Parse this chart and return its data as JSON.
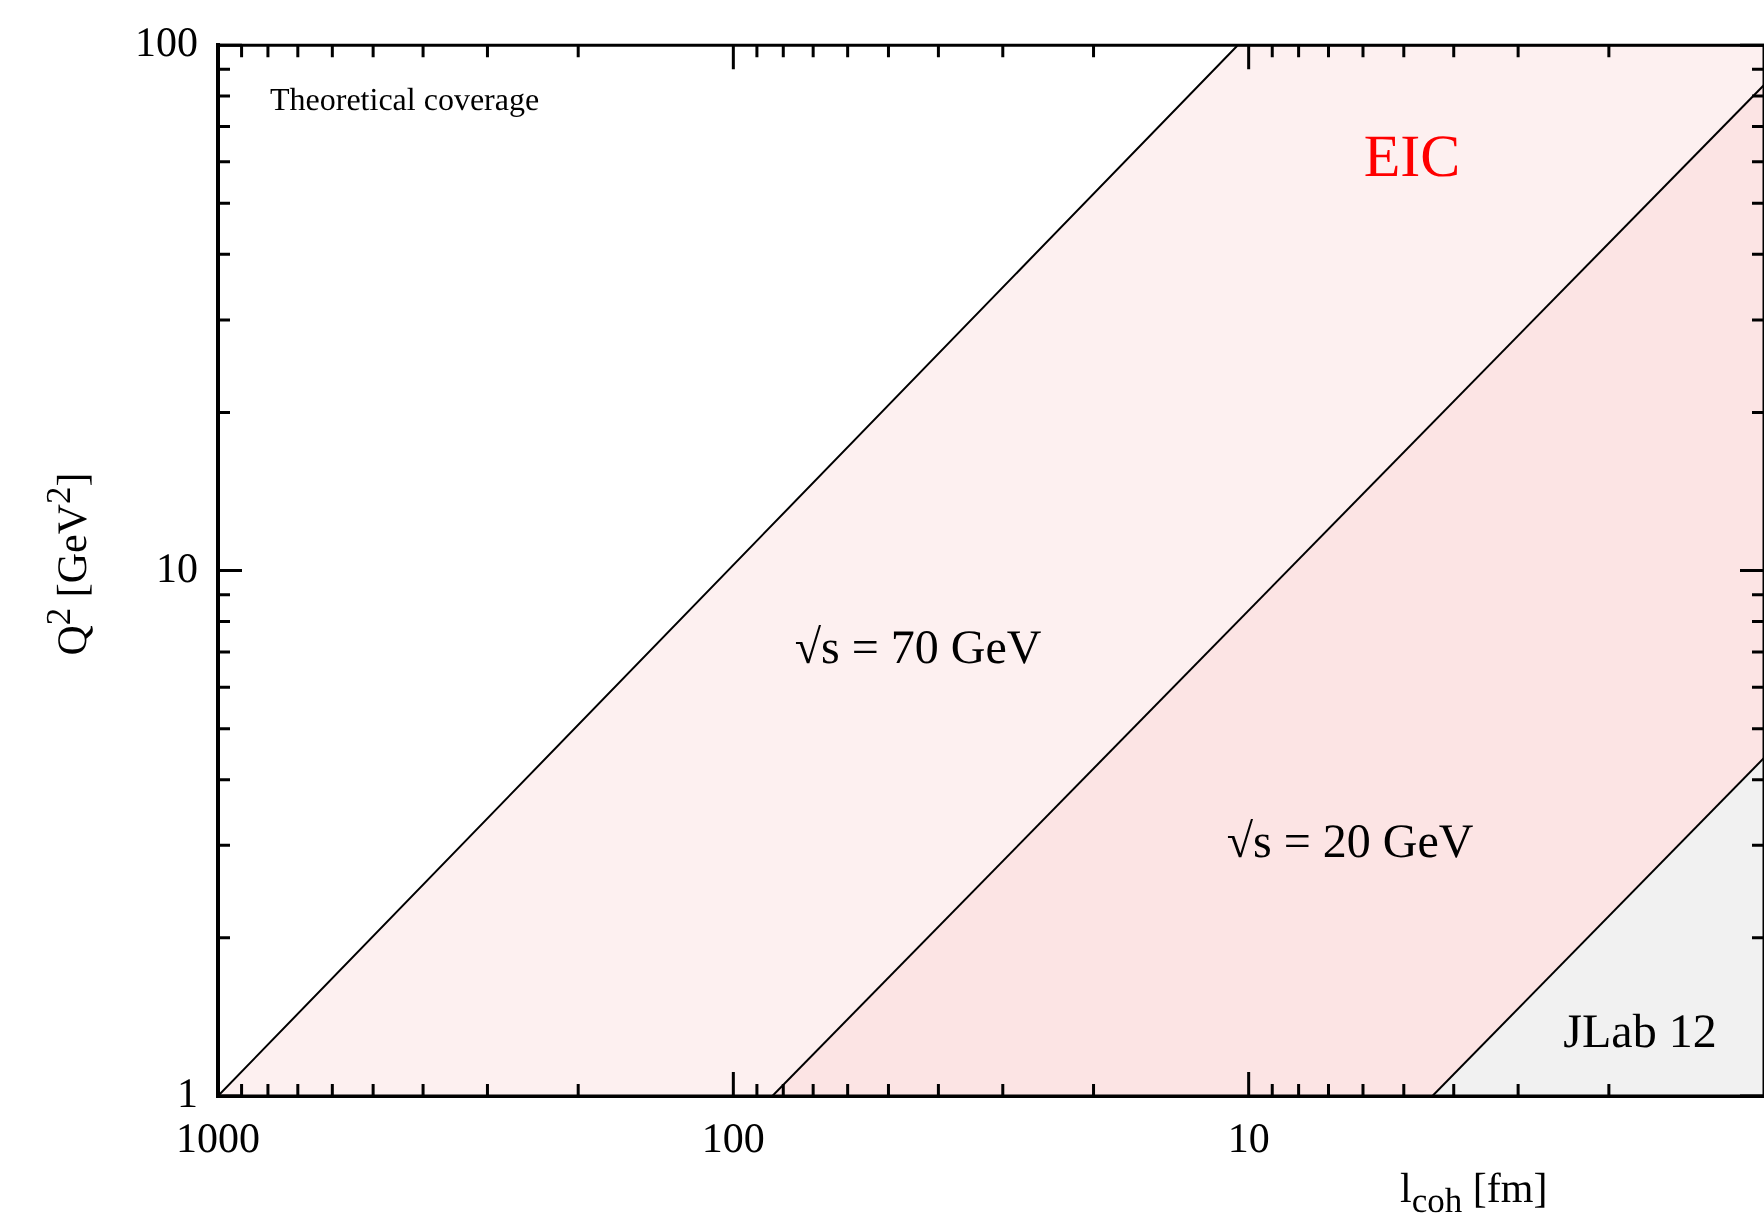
{
  "chart_data": {
    "type": "area",
    "xlabel": "l$_{coh}$   [fm]",
    "ylabel": "Q$^{2}$  [GeV$^{2}$]",
    "log": "xy",
    "xlim": [
      1000,
      1
    ],
    "ylim": [
      1,
      100
    ],
    "xticks": [
      1000,
      {
        "value": 900,
        "label": null
      },
      {
        "value": 800,
        "label": null
      },
      {
        "value": 700,
        "label": null
      },
      {
        "value": 600,
        "label": null
      },
      {
        "value": 500,
        "label": null
      },
      {
        "value": 400,
        "label": null
      },
      {
        "value": 300,
        "label": null
      },
      {
        "value": 200,
        "label": null
      },
      100,
      {
        "value": 90,
        "label": null
      },
      {
        "value": 80,
        "label": null
      },
      {
        "value": 70,
        "label": null
      },
      {
        "value": 60,
        "label": null
      },
      {
        "value": 50,
        "label": null
      },
      {
        "value": 40,
        "label": null
      },
      {
        "value": 30,
        "label": null
      },
      {
        "value": 20,
        "label": null
      },
      10,
      {
        "value": 9,
        "label": null
      },
      {
        "value": 8,
        "label": null
      },
      {
        "value": 7,
        "label": null
      },
      {
        "value": 6,
        "label": null
      },
      {
        "value": 5,
        "label": null
      },
      {
        "value": 4,
        "label": null
      },
      {
        "value": 3,
        "label": null
      },
      {
        "value": 2,
        "label": null
      }
    ],
    "yticks": [
      1,
      {
        "value": 2,
        "label": null
      },
      {
        "value": 3,
        "label": null
      },
      {
        "value": 4,
        "label": null
      },
      {
        "value": 5,
        "label": null
      },
      {
        "value": 6,
        "label": null
      },
      {
        "value": 7,
        "label": null
      },
      {
        "value": 8,
        "label": null
      },
      {
        "value": 9,
        "label": null
      },
      10,
      {
        "value": 20,
        "label": null
      },
      {
        "value": 30,
        "label": null
      },
      {
        "value": 40,
        "label": null
      },
      {
        "value": 50,
        "label": null
      },
      {
        "value": 60,
        "label": null
      },
      {
        "value": 70,
        "label": null
      },
      {
        "value": 80,
        "label": null
      },
      {
        "value": 90,
        "label": null
      },
      100
    ],
    "grid": false,
    "series": [
      {
        "name": "√s = 70 GeV",
        "color": "#fdf0f0",
        "x": [
          1000,
          10.5,
          1
        ],
        "values": [
          1,
          100,
          100
        ]
      },
      {
        "name": "√s = 20 GeV",
        "color": "#fce4e4",
        "x": [
          84,
          1
        ],
        "values": [
          1,
          84
        ]
      },
      {
        "name": "JLab 12",
        "color": "#f1f1f1",
        "x": [
          4.4,
          1
        ],
        "values": [
          1,
          4.4
        ]
      }
    ],
    "annotations": [
      "Theoretical coverage",
      "EIC"
    ]
  }
}
